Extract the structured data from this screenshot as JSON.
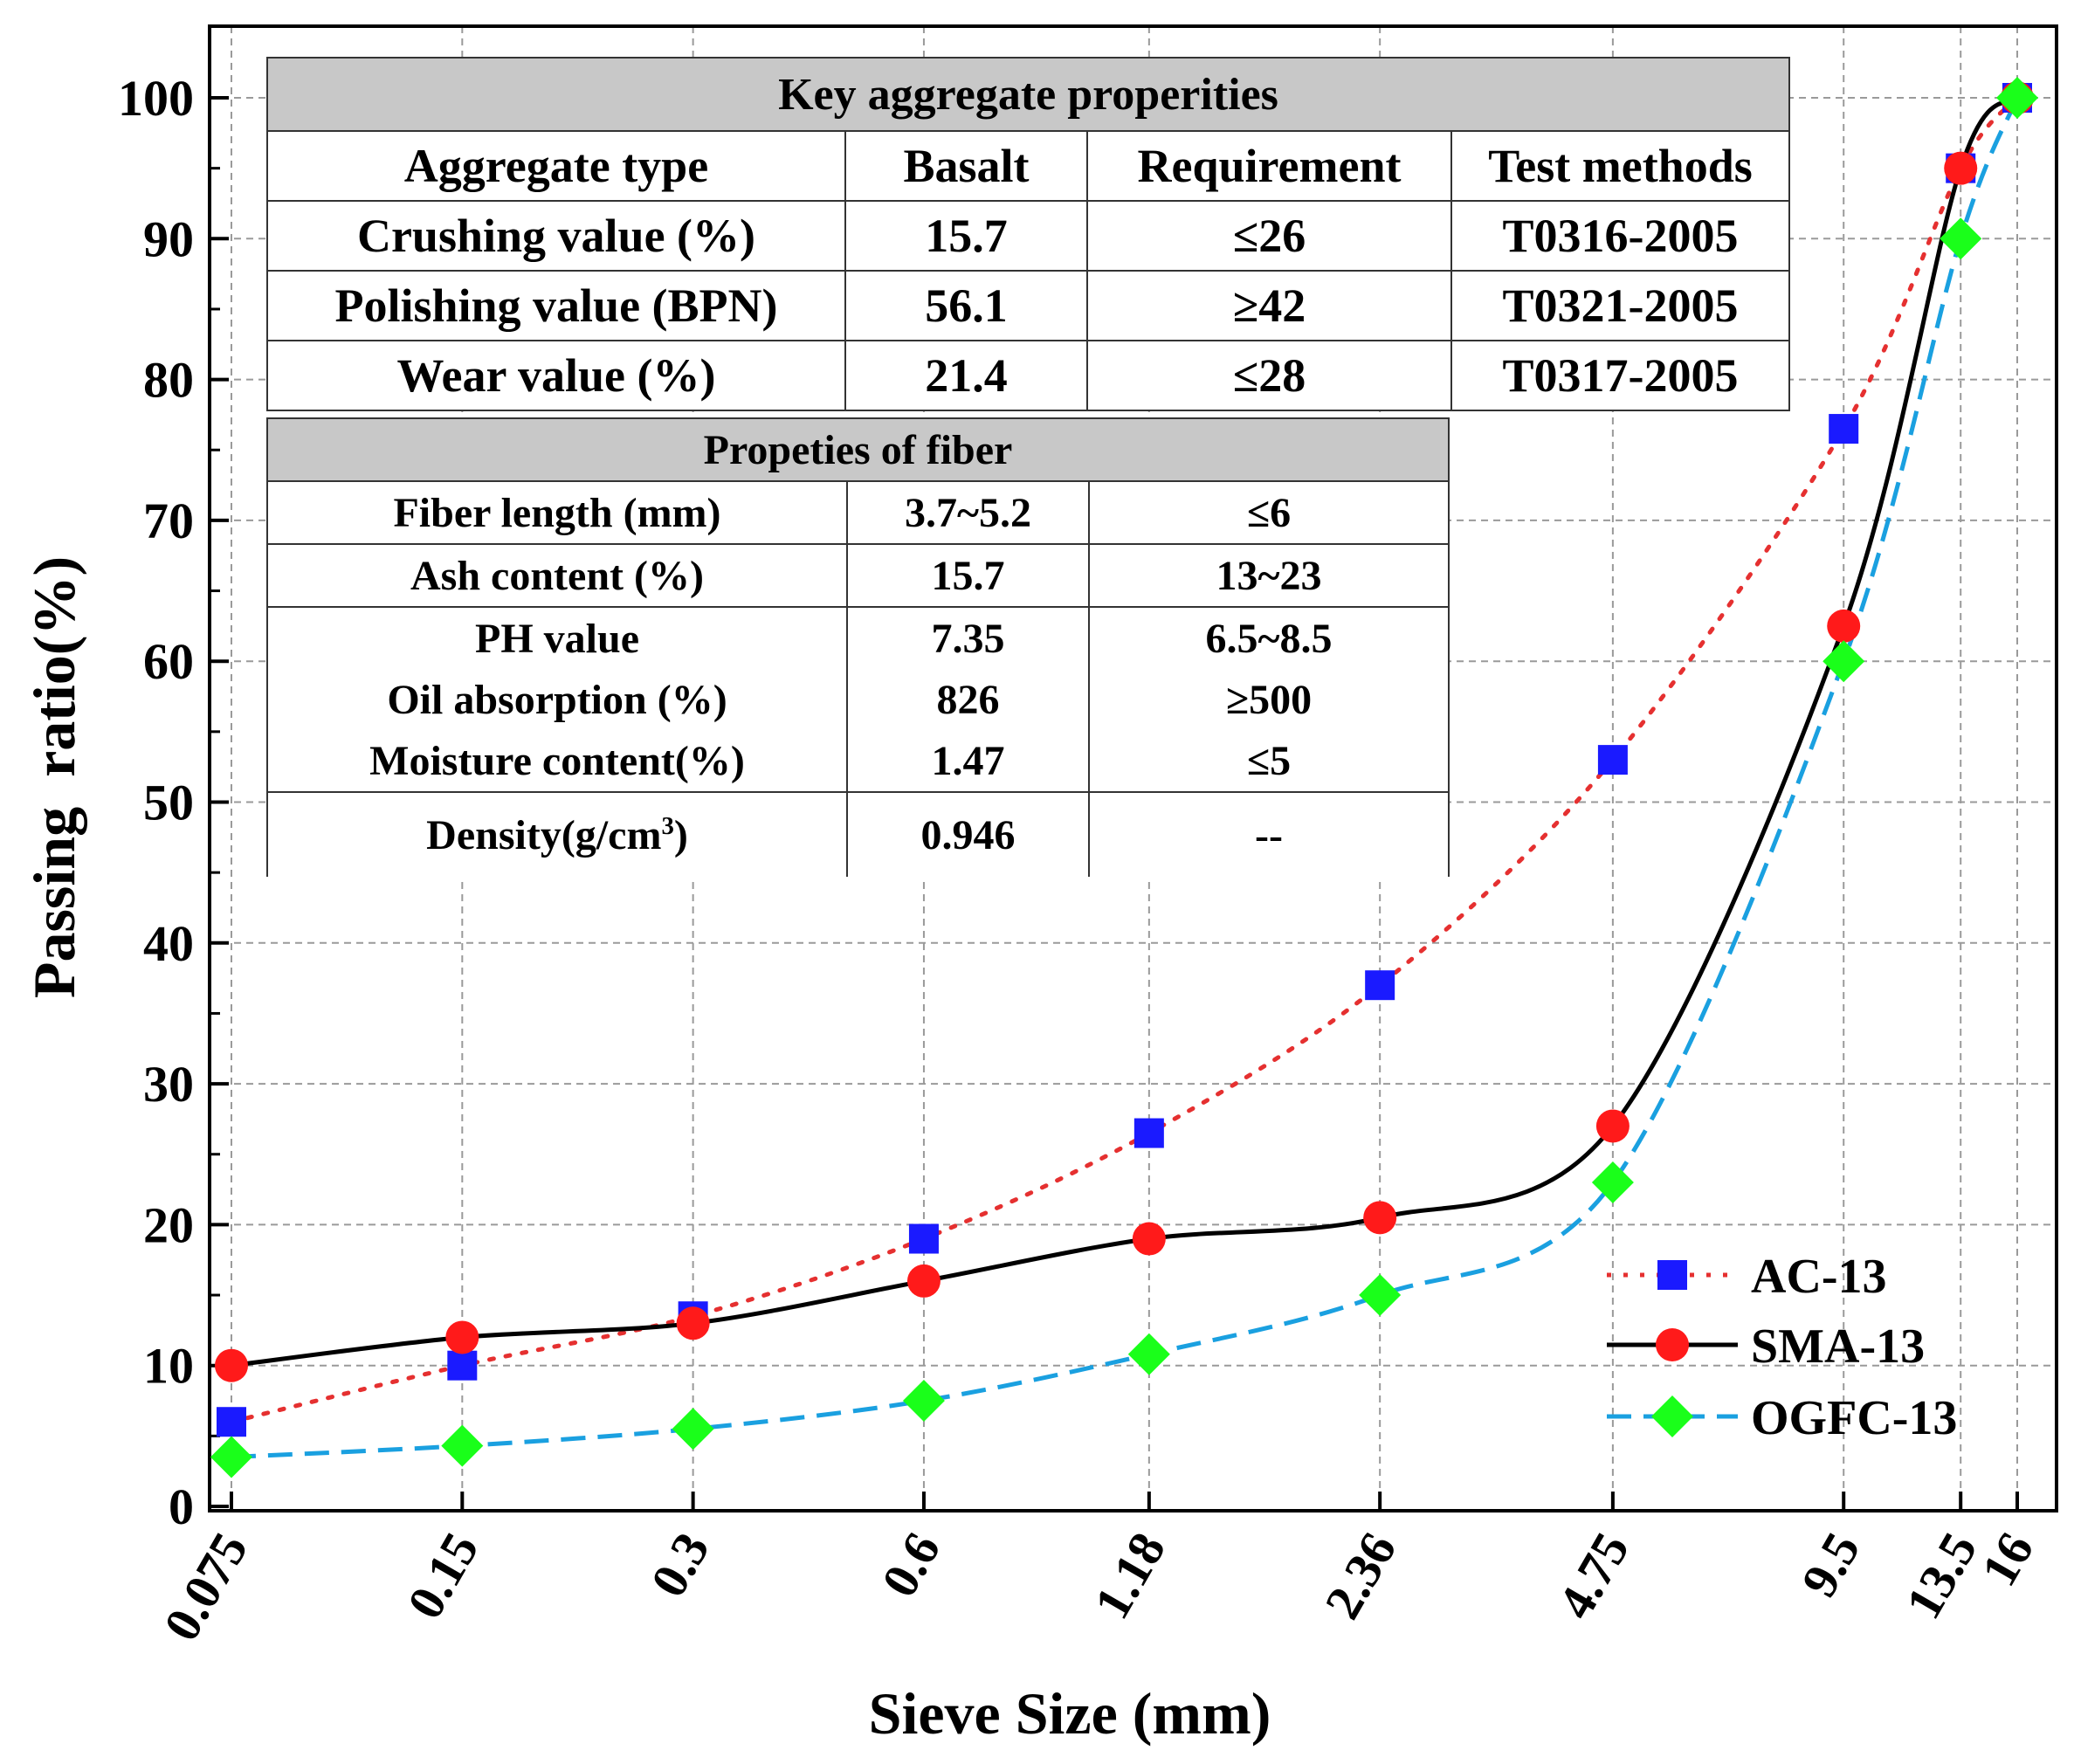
{
  "chart_data": {
    "type": "line",
    "xlabel": "Sieve Size (mm)",
    "ylabel": "Passing  ratio(%)",
    "ylim": [
      0,
      100
    ],
    "yticks": [
      0,
      10,
      20,
      30,
      40,
      50,
      60,
      70,
      80,
      90,
      100
    ],
    "x": [
      "0.075",
      "0.15",
      "0.3",
      "0.6",
      "1.18",
      "2.36",
      "4.75",
      "9.5",
      "13.5",
      "16"
    ],
    "x_scale": "log",
    "grid": true,
    "legend_position": "bottom-right",
    "series": [
      {
        "name": "AC-13",
        "style": "dotted",
        "marker": "square",
        "color": "#e53030",
        "marker_color": "#1a1aff",
        "values": [
          6,
          10,
          13.5,
          19,
          26.5,
          37,
          53,
          76.5,
          95,
          100
        ]
      },
      {
        "name": "SMA-13",
        "style": "solid",
        "marker": "circle",
        "color": "#000000",
        "marker_color": "#ff1a1a",
        "values": [
          10,
          12,
          13,
          16,
          19,
          20.5,
          27,
          62.5,
          95,
          100
        ]
      },
      {
        "name": "OGFC-13",
        "style": "dashed",
        "marker": "diamond",
        "color": "#1aa0e0",
        "marker_color": "#1aff1a",
        "values": [
          3.5,
          4.3,
          5.5,
          7.5,
          10.8,
          15,
          23,
          60,
          90,
          100
        ]
      }
    ]
  },
  "table_aggregate": {
    "title": "Key aggregate properities",
    "headers": [
      "Aggregate type",
      "Basalt",
      "Requirement",
      "Test methods"
    ],
    "rows": [
      [
        "Crushing value (%)",
        "15.7",
        "≤26",
        "T0316-2005"
      ],
      [
        "Polishing value (BPN)",
        "56.1",
        "≥42",
        "T0321-2005"
      ],
      [
        "Wear value (%)",
        "21.4",
        "≤28",
        "T0317-2005"
      ]
    ]
  },
  "table_fiber": {
    "title": "Propeties of fiber",
    "rows": [
      [
        "Fiber length (mm)",
        "3.7~5.2",
        "≤6"
      ],
      [
        "Ash content (%)",
        "15.7",
        "13~23"
      ],
      [
        "PH value",
        "7.35",
        "6.5~8.5"
      ],
      [
        "Oil absorption (%)",
        "826",
        "≥500"
      ],
      [
        "Moisture content(%)",
        "1.47",
        "≤5"
      ]
    ],
    "density_label": "Density(g/cm",
    "density_sup": "3",
    "density_close": ")",
    "density_value": "0.946",
    "density_req": "--"
  }
}
